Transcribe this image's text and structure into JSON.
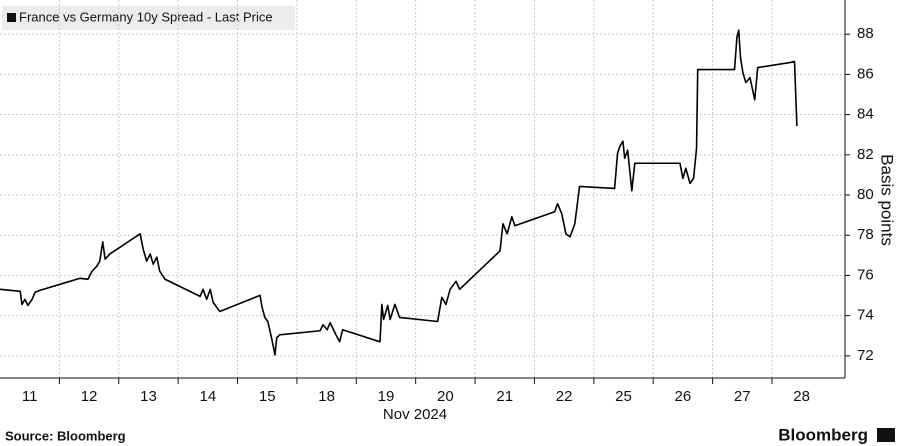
{
  "chart_data": {
    "type": "line",
    "legend": "France vs Germany 10y Spread - Last Price",
    "y_axis_label": "Basis points",
    "x_axis_label": "Nov 2024",
    "source": "Source: Bloomberg",
    "brand": "Bloomberg",
    "color": "#000000",
    "grid": true,
    "xlim": [
      0,
      14.23
    ],
    "xticks": [
      {
        "value": 0.5,
        "label": "11"
      },
      {
        "value": 1.5,
        "label": "12"
      },
      {
        "value": 2.5,
        "label": "13"
      },
      {
        "value": 3.5,
        "label": "14"
      },
      {
        "value": 4.5,
        "label": "15"
      },
      {
        "value": 5.5,
        "label": "18"
      },
      {
        "value": 6.5,
        "label": "19"
      },
      {
        "value": 7.5,
        "label": "20"
      },
      {
        "value": 8.5,
        "label": "21"
      },
      {
        "value": 9.5,
        "label": "22"
      },
      {
        "value": 10.5,
        "label": "25"
      },
      {
        "value": 11.5,
        "label": "26"
      },
      {
        "value": 12.5,
        "label": "27"
      },
      {
        "value": 13.5,
        "label": "28"
      }
    ],
    "ylim": [
      70.9,
      89.7
    ],
    "yticks": [
      72,
      74,
      76,
      78,
      80,
      82,
      84,
      86,
      88
    ],
    "x": [
      0,
      0.34,
      0.37,
      0.42,
      0.47,
      0.54,
      0.59,
      0.67,
      1.01,
      1.35,
      1.48,
      1.55,
      1.63,
      1.68,
      1.73,
      1.77,
      1.85,
      2.36,
      2.41,
      2.47,
      2.53,
      2.58,
      2.64,
      2.69,
      2.78,
      3.37,
      3.42,
      3.48,
      3.54,
      3.59,
      3.7,
      4.38,
      4.41,
      4.46,
      4.51,
      4.58,
      4.63,
      4.66,
      4.71,
      5.39,
      5.44,
      5.51,
      5.56,
      5.64,
      5.72,
      5.77,
      6.4,
      6.43,
      6.46,
      6.53,
      6.57,
      6.65,
      6.73,
      7.37,
      7.44,
      7.51,
      7.58,
      7.68,
      7.74,
      8.42,
      8.47,
      8.54,
      8.62,
      8.67,
      9.34,
      9.39,
      9.46,
      9.53,
      9.6,
      9.68,
      9.76,
      10.35,
      10.4,
      10.44,
      10.49,
      10.52,
      10.57,
      10.64,
      10.69,
      10.77,
      11.45,
      11.5,
      11.55,
      11.62,
      11.68,
      11.73,
      11.75,
      12.37,
      12.41,
      12.44,
      12.47,
      12.51,
      12.56,
      12.63,
      12.71,
      12.76,
      13.3,
      13.38,
      13.42
    ],
    "values": [
      75.31,
      75.21,
      74.56,
      74.81,
      74.51,
      74.81,
      75.16,
      75.26,
      75.56,
      75.86,
      75.81,
      76.21,
      76.46,
      76.71,
      77.67,
      76.81,
      77.07,
      78.07,
      77.32,
      76.71,
      77.07,
      76.56,
      76.91,
      76.21,
      75.81,
      74.96,
      75.31,
      74.81,
      75.31,
      74.66,
      74.21,
      75.01,
      74.46,
      73.91,
      73.71,
      72.8,
      72.05,
      72.9,
      73.05,
      73.25,
      73.55,
      73.3,
      73.65,
      73.15,
      72.7,
      73.3,
      72.7,
      74.56,
      73.81,
      74.51,
      73.81,
      74.56,
      73.91,
      73.71,
      74.91,
      74.56,
      75.31,
      75.71,
      75.31,
      77.22,
      78.57,
      78.07,
      78.92,
      78.47,
      79.17,
      79.57,
      79.07,
      78.07,
      77.92,
      78.57,
      80.43,
      80.33,
      82.08,
      82.43,
      82.68,
      81.83,
      82.23,
      80.22,
      81.58,
      81.58,
      81.58,
      80.83,
      81.33,
      80.58,
      80.83,
      82.33,
      86.24,
      86.24,
      87.85,
      88.2,
      86.84,
      86.09,
      85.59,
      85.84,
      84.74,
      86.34,
      86.59,
      86.64,
      83.43
    ]
  }
}
